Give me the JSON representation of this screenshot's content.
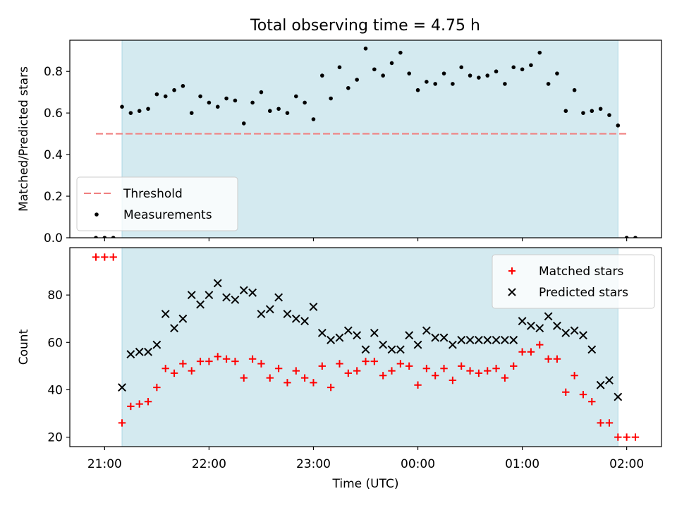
{
  "title": "Total observing time = 4.75 h",
  "colors": {
    "background": "#ffffff",
    "shade": "#d4eaf0",
    "threshold": "#f08080",
    "measurement": "#000000",
    "matched": "#ff0000",
    "predicted": "#000000"
  },
  "chart_data": [
    {
      "type": "scatter",
      "ylabel": "Matched/Predicted stars",
      "ylim": [
        0,
        0.95
      ],
      "yticks": [
        0.0,
        0.2,
        0.4,
        0.6,
        0.8
      ],
      "ytick_labels": [
        "0.0",
        "0.2",
        "0.4",
        "0.6",
        "0.8"
      ],
      "xlim": [
        "20:40",
        "02:20"
      ],
      "observing_window": [
        "21:10",
        "01:55"
      ],
      "legend_position": "lower-left",
      "threshold": {
        "name": "Threshold",
        "value": 0.5,
        "x_range": [
          "20:55",
          "02:00"
        ],
        "style": "dashed"
      },
      "series": [
        {
          "name": "Measurements",
          "marker": "dot",
          "x": [
            "20:55",
            "21:00",
            "21:05",
            "21:10",
            "21:15",
            "21:20",
            "21:25",
            "21:30",
            "21:35",
            "21:40",
            "21:45",
            "21:50",
            "21:55",
            "22:00",
            "22:05",
            "22:10",
            "22:15",
            "22:20",
            "22:25",
            "22:30",
            "22:35",
            "22:40",
            "22:45",
            "22:50",
            "22:55",
            "23:00",
            "23:05",
            "23:10",
            "23:15",
            "23:20",
            "23:25",
            "23:30",
            "23:35",
            "23:40",
            "23:45",
            "23:50",
            "23:55",
            "00:00",
            "00:05",
            "00:10",
            "00:15",
            "00:20",
            "00:25",
            "00:30",
            "00:35",
            "00:40",
            "00:45",
            "00:50",
            "00:55",
            "01:00",
            "01:05",
            "01:10",
            "01:15",
            "01:20",
            "01:25",
            "01:30",
            "01:35",
            "01:40",
            "01:45",
            "01:50",
            "01:55",
            "02:00",
            "02:05"
          ],
          "values": [
            0.0,
            0.0,
            0.0,
            0.63,
            0.6,
            0.61,
            0.62,
            0.69,
            0.68,
            0.71,
            0.73,
            0.6,
            0.68,
            0.65,
            0.63,
            0.67,
            0.66,
            0.55,
            0.65,
            0.7,
            0.61,
            0.62,
            0.6,
            0.68,
            0.65,
            0.57,
            0.78,
            0.67,
            0.82,
            0.72,
            0.76,
            0.91,
            0.81,
            0.78,
            0.84,
            0.89,
            0.79,
            0.71,
            0.75,
            0.74,
            0.79,
            0.74,
            0.82,
            0.78,
            0.77,
            0.78,
            0.8,
            0.74,
            0.82,
            0.81,
            0.83,
            0.89,
            0.74,
            0.79,
            0.61,
            0.71,
            0.6,
            0.61,
            0.62,
            0.59,
            0.54,
            0.0,
            0.0
          ]
        }
      ]
    },
    {
      "type": "scatter",
      "xlabel": "Time (UTC)",
      "ylabel": "Count",
      "ylim": [
        16,
        100
      ],
      "yticks": [
        20,
        40,
        60,
        80
      ],
      "ytick_labels": [
        "20",
        "40",
        "60",
        "80"
      ],
      "xlim": [
        "20:40",
        "02:20"
      ],
      "xticks": [
        "21:00",
        "22:00",
        "23:00",
        "00:00",
        "01:00",
        "02:00"
      ],
      "observing_window": [
        "21:10",
        "01:55"
      ],
      "legend_position": "upper-right",
      "series": [
        {
          "name": "Matched stars",
          "marker": "plus",
          "x": [
            "20:55",
            "21:00",
            "21:05",
            "21:10",
            "21:15",
            "21:20",
            "21:25",
            "21:30",
            "21:35",
            "21:40",
            "21:45",
            "21:50",
            "21:55",
            "22:00",
            "22:05",
            "22:10",
            "22:15",
            "22:20",
            "22:25",
            "22:30",
            "22:35",
            "22:40",
            "22:45",
            "22:50",
            "22:55",
            "23:00",
            "23:05",
            "23:10",
            "23:15",
            "23:20",
            "23:25",
            "23:30",
            "23:35",
            "23:40",
            "23:45",
            "23:50",
            "23:55",
            "00:00",
            "00:05",
            "00:10",
            "00:15",
            "00:20",
            "00:25",
            "00:30",
            "00:35",
            "00:40",
            "00:45",
            "00:50",
            "00:55",
            "01:00",
            "01:05",
            "01:10",
            "01:15",
            "01:20",
            "01:25",
            "01:30",
            "01:35",
            "01:40",
            "01:45",
            "01:50",
            "01:55",
            "02:00",
            "02:05"
          ],
          "values": [
            96,
            96,
            96,
            26,
            33,
            34,
            35,
            41,
            49,
            47,
            51,
            48,
            52,
            52,
            54,
            53,
            52,
            45,
            53,
            51,
            45,
            49,
            43,
            48,
            45,
            43,
            50,
            41,
            51,
            47,
            48,
            52,
            52,
            46,
            48,
            51,
            50,
            42,
            49,
            46,
            49,
            44,
            50,
            48,
            47,
            48,
            49,
            45,
            50,
            56,
            56,
            59,
            53,
            53,
            39,
            46,
            38,
            35,
            26,
            26,
            20,
            20,
            20
          ]
        },
        {
          "name": "Predicted stars",
          "marker": "x",
          "x": [
            "21:10",
            "21:15",
            "21:20",
            "21:25",
            "21:30",
            "21:35",
            "21:40",
            "21:45",
            "21:50",
            "21:55",
            "22:00",
            "22:05",
            "22:10",
            "22:15",
            "22:20",
            "22:25",
            "22:30",
            "22:35",
            "22:40",
            "22:45",
            "22:50",
            "22:55",
            "23:00",
            "23:05",
            "23:10",
            "23:15",
            "23:20",
            "23:25",
            "23:30",
            "23:35",
            "23:40",
            "23:45",
            "23:50",
            "23:55",
            "00:00",
            "00:05",
            "00:10",
            "00:15",
            "00:20",
            "00:25",
            "00:30",
            "00:35",
            "00:40",
            "00:45",
            "00:50",
            "00:55",
            "01:00",
            "01:05",
            "01:10",
            "01:15",
            "01:20",
            "01:25",
            "01:30",
            "01:35",
            "01:40",
            "01:45",
            "01:50",
            "01:55"
          ],
          "values": [
            41,
            55,
            56,
            56,
            59,
            72,
            66,
            70,
            80,
            76,
            80,
            85,
            79,
            78,
            82,
            81,
            72,
            74,
            79,
            72,
            70,
            69,
            75,
            64,
            61,
            62,
            65,
            63,
            57,
            64,
            59,
            57,
            57,
            63,
            59,
            65,
            62,
            62,
            59,
            61,
            61,
            61,
            61,
            61,
            61,
            61,
            69,
            67,
            66,
            71,
            67,
            64,
            65,
            63,
            57,
            42,
            44,
            37
          ]
        }
      ]
    }
  ]
}
